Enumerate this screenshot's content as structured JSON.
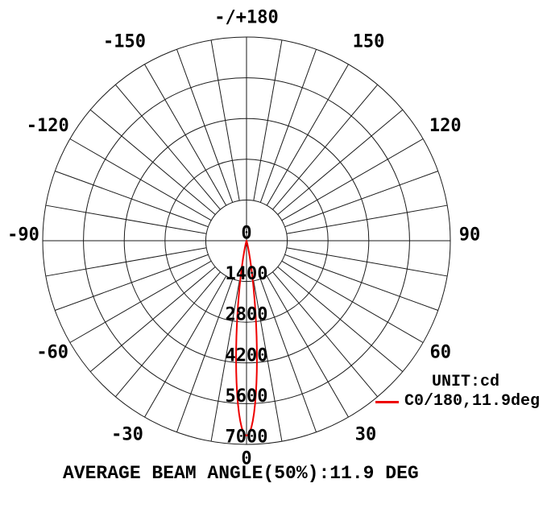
{
  "chart_data": {
    "type": "line",
    "subtype": "polar-intensity-distribution",
    "title": "",
    "unit_label": "UNIT:cd",
    "footer": "AVERAGE BEAM ANGLE(50%):11.9 DEG",
    "radial_max": 7000,
    "radial_ticks": [
      0,
      1400,
      2800,
      4200,
      5600,
      7000
    ],
    "grid_spoke_step_deg": 10,
    "angle_tick_step_deg": 30,
    "grid": "on",
    "legend_position": "right-bottom",
    "angle_labels": [
      {
        "angle": 180,
        "text": "-/+180"
      },
      {
        "angle": 150,
        "text": "150"
      },
      {
        "angle": 120,
        "text": "120"
      },
      {
        "angle": 90,
        "text": "90"
      },
      {
        "angle": 60,
        "text": "60"
      },
      {
        "angle": 30,
        "text": "30"
      },
      {
        "angle": 0,
        "text": "0"
      },
      {
        "angle": -30,
        "text": "-30"
      },
      {
        "angle": -60,
        "text": "-60"
      },
      {
        "angle": -90,
        "text": "-90"
      },
      {
        "angle": -120,
        "text": "-120"
      },
      {
        "angle": -150,
        "text": "-150"
      }
    ],
    "colors": {
      "grid": "#1a1a1a",
      "text": "#000000",
      "curve": "#ee0000"
    },
    "series": [
      {
        "name": "C0/180,11.9deg",
        "color": "#ee0000",
        "peak_cd": 6700,
        "beam_angle_50pct_deg": 11.9,
        "points": [
          [
            -28,
            0
          ],
          [
            -25,
            0
          ],
          [
            -22,
            1
          ],
          [
            -20,
            3
          ],
          [
            -18,
            12
          ],
          [
            -16,
            45
          ],
          [
            -15,
            82
          ],
          [
            -14,
            144
          ],
          [
            -13,
            244
          ],
          [
            -12,
            398
          ],
          [
            -11,
            625
          ],
          [
            -10,
            944
          ],
          [
            -9.5,
            1145
          ],
          [
            -9,
            1371
          ],
          [
            -8.5,
            1628
          ],
          [
            -8,
            1913
          ],
          [
            -7.5,
            2227
          ],
          [
            -7,
            2566
          ],
          [
            -6.5,
            2930
          ],
          [
            -6,
            3310
          ],
          [
            -5.5,
            3705
          ],
          [
            -5,
            4106
          ],
          [
            -4.5,
            4507
          ],
          [
            -4,
            4896
          ],
          [
            -3.5,
            5271
          ],
          [
            -3,
            5617
          ],
          [
            -2.5,
            5928
          ],
          [
            -2,
            6195
          ],
          [
            -1.5,
            6411
          ],
          [
            -1,
            6570
          ],
          [
            -0.5,
            6667
          ],
          [
            0,
            6700
          ],
          [
            0.5,
            6667
          ],
          [
            1,
            6570
          ],
          [
            1.5,
            6411
          ],
          [
            2,
            6195
          ],
          [
            2.5,
            5928
          ],
          [
            3,
            5617
          ],
          [
            3.5,
            5271
          ],
          [
            4,
            4896
          ],
          [
            4.5,
            4507
          ],
          [
            5,
            4106
          ],
          [
            5.5,
            3705
          ],
          [
            6,
            3310
          ],
          [
            6.5,
            2930
          ],
          [
            7,
            2566
          ],
          [
            7.5,
            2227
          ],
          [
            8,
            1913
          ],
          [
            8.5,
            1628
          ],
          [
            9,
            1371
          ],
          [
            9.5,
            1145
          ],
          [
            10,
            944
          ],
          [
            11,
            625
          ],
          [
            12,
            398
          ],
          [
            13,
            244
          ],
          [
            14,
            144
          ],
          [
            15,
            82
          ],
          [
            16,
            45
          ],
          [
            18,
            12
          ],
          [
            20,
            3
          ],
          [
            22,
            1
          ],
          [
            25,
            0
          ],
          [
            28,
            0
          ]
        ]
      }
    ]
  }
}
